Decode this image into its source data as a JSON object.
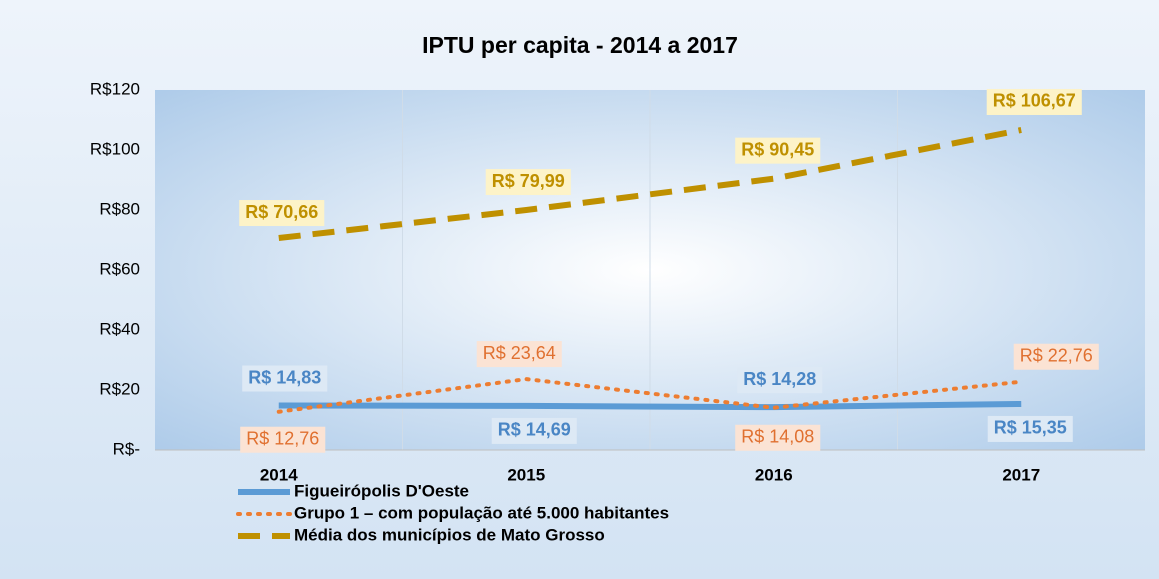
{
  "chart_data": {
    "type": "line",
    "title": "IPTU per capita - 2014 a 2017",
    "categories": [
      "2014",
      "2015",
      "2016",
      "2017"
    ],
    "series": [
      {
        "name": "Figueirópolis D'Oeste",
        "color": "#5b9bd5",
        "style": "solid",
        "values": [
          14.83,
          14.69,
          14.28,
          15.35
        ],
        "value_labels": [
          "R$ 14,83",
          "R$ 14,69",
          "R$ 14,28",
          "R$ 15,35"
        ]
      },
      {
        "name": "Grupo 1 – com população até 5.000 habitantes",
        "color": "#ed7d31",
        "style": "dotted",
        "values": [
          12.76,
          23.64,
          14.08,
          22.76
        ],
        "value_labels": [
          "R$ 12,76",
          "R$ 23,64",
          "R$ 14,08",
          "R$ 22,76"
        ]
      },
      {
        "name": "Média dos municípios de Mato Grosso",
        "color": "#bf9000",
        "style": "dashed",
        "values": [
          70.66,
          79.99,
          90.45,
          106.67
        ],
        "value_labels": [
          "R$ 70,66",
          "R$ 79,99",
          "R$ 90,45",
          "R$ 106,67"
        ]
      }
    ],
    "ylim": [
      0,
      120
    ],
    "yticks": [
      {
        "value": 0,
        "label": "R$-"
      },
      {
        "value": 20,
        "label": "R$20"
      },
      {
        "value": 40,
        "label": "R$40"
      },
      {
        "value": 60,
        "label": "R$60"
      },
      {
        "value": 80,
        "label": "R$80"
      },
      {
        "value": 100,
        "label": "R$100"
      },
      {
        "value": 120,
        "label": "R$120"
      }
    ],
    "legend": "bottom"
  }
}
